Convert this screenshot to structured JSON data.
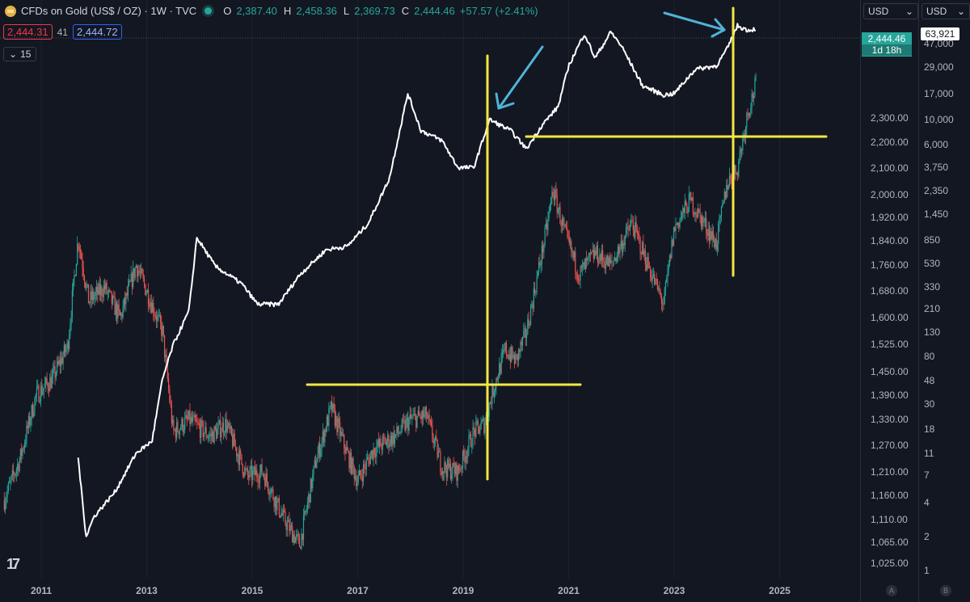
{
  "header": {
    "title": "CFDs on Gold (US$ / OZ) · 1W · TVC",
    "open_label": "O",
    "open": "2,387.40",
    "high_label": "H",
    "high": "2,458.36",
    "low_label": "L",
    "low": "2,369.73",
    "close_label": "C",
    "close": "2,444.46",
    "change": "+57.57 (+2.41%)",
    "sell_price": "2,444.31",
    "spread": "41",
    "buy_price": "2,444.72",
    "indicator_value": "15"
  },
  "right_axis_gold": {
    "currency": "USD",
    "current_price": "2,444.46",
    "countdown": "1d 18h",
    "ticks": [
      "2,300.00",
      "2,200.00",
      "2,100.00",
      "2,000.00",
      "1,920.00",
      "1,840.00",
      "1,760.00",
      "1,680.00",
      "1,600.00",
      "1,525.00",
      "1,450.00",
      "1,390.00",
      "1,330.00",
      "1,270.00",
      "1,210.00",
      "1,160.00",
      "1,110.00",
      "1,065.00",
      "1,025.00"
    ],
    "scale_button": "A"
  },
  "right_axis_btc": {
    "currency": "USD",
    "current_value": "63,921",
    "ticks": [
      "47,000",
      "29,000",
      "17,000",
      "10,000",
      "6,000",
      "3,750",
      "2,350",
      "1,450",
      "850",
      "530",
      "330",
      "210",
      "130",
      "80",
      "48",
      "30",
      "18",
      "11",
      "7",
      "4",
      "2",
      "1"
    ],
    "scale_button": "B"
  },
  "x_axis": {
    "ticks": [
      "2011",
      "2013",
      "2015",
      "2017",
      "2019",
      "2021",
      "2023",
      "2025"
    ]
  },
  "colors": {
    "up": "#26a69a",
    "down": "#ef5350",
    "line": "#ffffff",
    "annotation": "#f5e642",
    "arrow": "#4fb3d9",
    "background": "#131722"
  },
  "chart_data": {
    "type": "line",
    "y_scale": "log",
    "gold_ylim": [
      1000,
      2500
    ],
    "btc_ylim": [
      1,
      80000
    ],
    "series": [
      {
        "values_kind": "candlestick close (weekly, approx.)",
        "x": [
          2010.3,
          2010.6,
          2010.9,
          2011.2,
          2011.5,
          2011.7,
          2011.9,
          2012.2,
          2012.5,
          2012.8,
          2013.0,
          2013.3,
          2013.5,
          2013.8,
          2014.2,
          2014.5,
          2014.9,
          2015.2,
          2015.6,
          2015.9,
          2016.2,
          2016.5,
          2016.8,
          2017.0,
          2017.3,
          2017.7,
          2018.0,
          2018.3,
          2018.6,
          2018.9,
          2019.2,
          2019.4,
          2019.6,
          2019.8,
          2020.0,
          2020.2,
          2020.4,
          2020.6,
          2020.7,
          2020.9,
          2021.2,
          2021.5,
          2021.8,
          2022.2,
          2022.6,
          2022.8,
          2023.0,
          2023.3,
          2023.5,
          2023.8,
          2024.0,
          2024.2,
          2024.4,
          2024.55
        ],
        "y": [
          1150,
          1240,
          1390,
          1430,
          1520,
          1850,
          1650,
          1690,
          1600,
          1760,
          1680,
          1560,
          1300,
          1330,
          1290,
          1320,
          1200,
          1210,
          1110,
          1060,
          1230,
          1360,
          1250,
          1190,
          1260,
          1290,
          1330,
          1340,
          1220,
          1210,
          1300,
          1320,
          1420,
          1510,
          1480,
          1560,
          1720,
          1900,
          2020,
          1880,
          1730,
          1800,
          1760,
          1900,
          1720,
          1640,
          1880,
          1980,
          1920,
          1830,
          2040,
          2100,
          2330,
          2444
        ]
      },
      {
        "values_kind": "white overlay line (right scale, approx.)",
        "x": [
          2011.7,
          2011.85,
          2012.0,
          2012.4,
          2012.8,
          2013.1,
          2013.3,
          2013.5,
          2013.8,
          2013.95,
          2014.3,
          2014.8,
          2015.1,
          2015.5,
          2015.9,
          2016.4,
          2016.8,
          2017.2,
          2017.6,
          2017.95,
          2018.2,
          2018.6,
          2018.9,
          2019.2,
          2019.5,
          2019.9,
          2020.2,
          2020.5,
          2020.8,
          2021.0,
          2021.3,
          2021.5,
          2021.8,
          2022.0,
          2022.4,
          2022.8,
          2023.0,
          2023.4,
          2023.8,
          2024.0,
          2024.2,
          2024.4,
          2024.55
        ],
        "y": [
          10,
          2,
          3,
          5,
          11,
          14,
          50,
          100,
          200,
          900,
          500,
          350,
          230,
          230,
          420,
          700,
          750,
          1200,
          3000,
          17000,
          8000,
          6500,
          3750,
          3750,
          10000,
          8000,
          5500,
          9000,
          13000,
          30000,
          58000,
          35000,
          60000,
          45000,
          20000,
          16500,
          17000,
          28000,
          30000,
          42000,
          68000,
          62000,
          63921
        ]
      }
    ],
    "annotations": [
      "horizontal line near 1,360",
      "horizontal line near 2,080",
      "vertical line mid-2019",
      "vertical line early 2024",
      "two arrows"
    ]
  }
}
